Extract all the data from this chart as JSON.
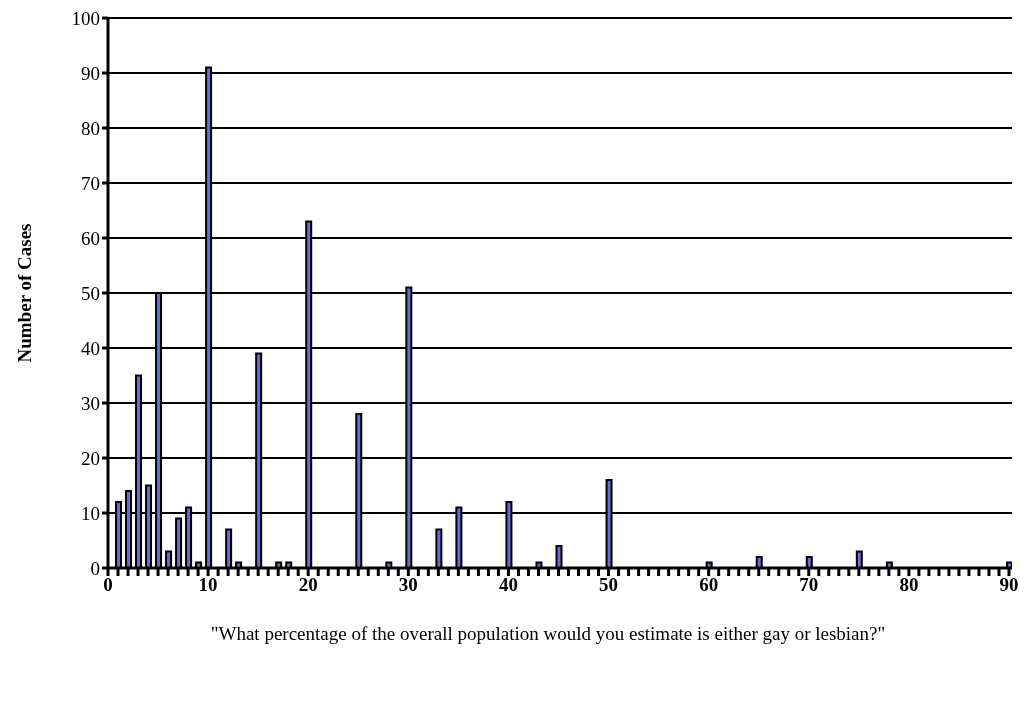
{
  "chart_data": {
    "type": "bar",
    "xlabel": "\"What percentage of the overall population would you estimate is either gay or lesbian?\"",
    "ylabel": "Number of Cases",
    "x": [
      1,
      2,
      3,
      4,
      5,
      6,
      7,
      8,
      9,
      10,
      12,
      13,
      15,
      17,
      18,
      20,
      25,
      28,
      30,
      33,
      35,
      40,
      43,
      45,
      50,
      60,
      65,
      70,
      75,
      78,
      90
    ],
    "values": [
      12,
      14,
      35,
      15,
      50,
      3,
      9,
      11,
      1,
      91,
      7,
      1,
      39,
      1,
      1,
      63,
      28,
      1,
      51,
      7,
      11,
      12,
      1,
      4,
      16,
      1,
      2,
      2,
      3,
      1,
      1
    ],
    "color": "#6b6bd6",
    "xlim": [
      0,
      90.3
    ],
    "xticks": [
      0,
      {
        "value": 1,
        "label": null
      },
      {
        "value": 2,
        "label": null
      },
      {
        "value": 3,
        "label": null
      },
      {
        "value": 4,
        "label": null
      },
      {
        "value": 5,
        "label": null
      },
      {
        "value": 6,
        "label": null
      },
      {
        "value": 7,
        "label": null
      },
      {
        "value": 8,
        "label": null
      },
      {
        "value": 9,
        "label": null
      },
      10,
      {
        "value": 11,
        "label": null
      },
      {
        "value": 12,
        "label": null
      },
      {
        "value": 13,
        "label": null
      },
      {
        "value": 14,
        "label": null
      },
      {
        "value": 15,
        "label": null
      },
      {
        "value": 16,
        "label": null
      },
      {
        "value": 17,
        "label": null
      },
      {
        "value": 18,
        "label": null
      },
      {
        "value": 19,
        "label": null
      },
      20,
      {
        "value": 21,
        "label": null
      },
      {
        "value": 22,
        "label": null
      },
      {
        "value": 23,
        "label": null
      },
      {
        "value": 24,
        "label": null
      },
      {
        "value": 25,
        "label": null
      },
      {
        "value": 26,
        "label": null
      },
      {
        "value": 27,
        "label": null
      },
      {
        "value": 28,
        "label": null
      },
      {
        "value": 29,
        "label": null
      },
      30,
      {
        "value": 31,
        "label": null
      },
      {
        "value": 32,
        "label": null
      },
      {
        "value": 33,
        "label": null
      },
      {
        "value": 34,
        "label": null
      },
      {
        "value": 35,
        "label": null
      },
      {
        "value": 36,
        "label": null
      },
      {
        "value": 37,
        "label": null
      },
      {
        "value": 38,
        "label": null
      },
      {
        "value": 39,
        "label": null
      },
      40,
      {
        "value": 41,
        "label": null
      },
      {
        "value": 42,
        "label": null
      },
      {
        "value": 43,
        "label": null
      },
      {
        "value": 44,
        "label": null
      },
      {
        "value": 45,
        "label": null
      },
      {
        "value": 46,
        "label": null
      },
      {
        "value": 47,
        "label": null
      },
      {
        "value": 48,
        "label": null
      },
      {
        "value": 49,
        "label": null
      },
      50,
      {
        "value": 51,
        "label": null
      },
      {
        "value": 52,
        "label": null
      },
      {
        "value": 53,
        "label": null
      },
      {
        "value": 54,
        "label": null
      },
      {
        "value": 55,
        "label": null
      },
      {
        "value": 56,
        "label": null
      },
      {
        "value": 57,
        "label": null
      },
      {
        "value": 58,
        "label": null
      },
      {
        "value": 59,
        "label": null
      },
      60,
      {
        "value": 61,
        "label": null
      },
      {
        "value": 62,
        "label": null
      },
      {
        "value": 63,
        "label": null
      },
      {
        "value": 64,
        "label": null
      },
      {
        "value": 65,
        "label": null
      },
      {
        "value": 66,
        "label": null
      },
      {
        "value": 67,
        "label": null
      },
      {
        "value": 68,
        "label": null
      },
      {
        "value": 69,
        "label": null
      },
      70,
      {
        "value": 71,
        "label": null
      },
      {
        "value": 72,
        "label": null
      },
      {
        "value": 73,
        "label": null
      },
      {
        "value": 74,
        "label": null
      },
      {
        "value": 75,
        "label": null
      },
      {
        "value": 76,
        "label": null
      },
      {
        "value": 77,
        "label": null
      },
      {
        "value": 78,
        "label": null
      },
      {
        "value": 79,
        "label": null
      },
      80,
      {
        "value": 81,
        "label": null
      },
      {
        "value": 82,
        "label": null
      },
      {
        "value": 83,
        "label": null
      },
      {
        "value": 84,
        "label": null
      },
      {
        "value": 85,
        "label": null
      },
      {
        "value": 86,
        "label": null
      },
      {
        "value": 87,
        "label": null
      },
      {
        "value": 88,
        "label": null
      },
      {
        "value": 89,
        "label": null
      },
      90
    ],
    "ylim": [
      0,
      100
    ],
    "yticks": [
      0,
      10,
      20,
      30,
      40,
      50,
      60,
      70,
      80,
      90,
      100
    ],
    "grid": "y",
    "legend": false
  }
}
